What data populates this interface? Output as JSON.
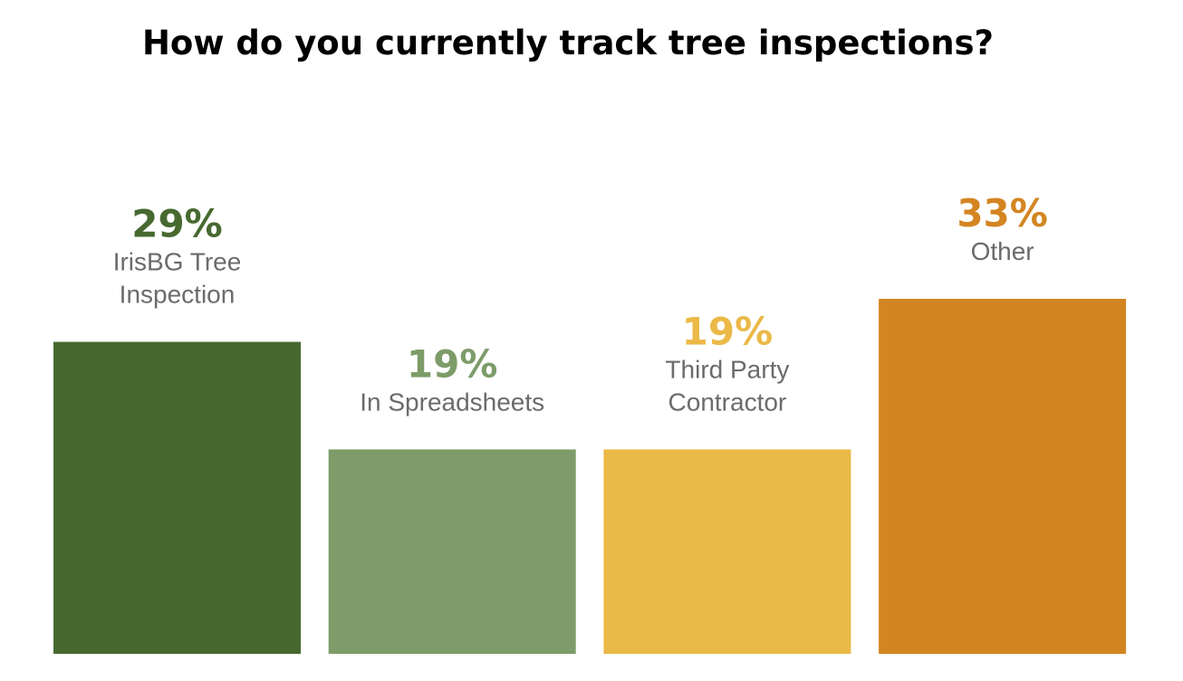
{
  "chart_data": {
    "type": "bar",
    "title": "How do you currently track tree inspections?",
    "categories": [
      [
        "IrisBG Tree",
        "Inspection"
      ],
      [
        "In Spreadsheets"
      ],
      [
        "Third Party",
        "Contractor"
      ],
      [
        "Other"
      ]
    ],
    "values": [
      29,
      19,
      19,
      33
    ],
    "value_labels": [
      "29%",
      "19%",
      "19%",
      "33%"
    ],
    "colors": [
      "#476930",
      "#7d9c69",
      "#ebb947",
      "#d38521"
    ],
    "ylim": [
      0,
      33
    ],
    "grid": false,
    "axes_visible": false
  }
}
